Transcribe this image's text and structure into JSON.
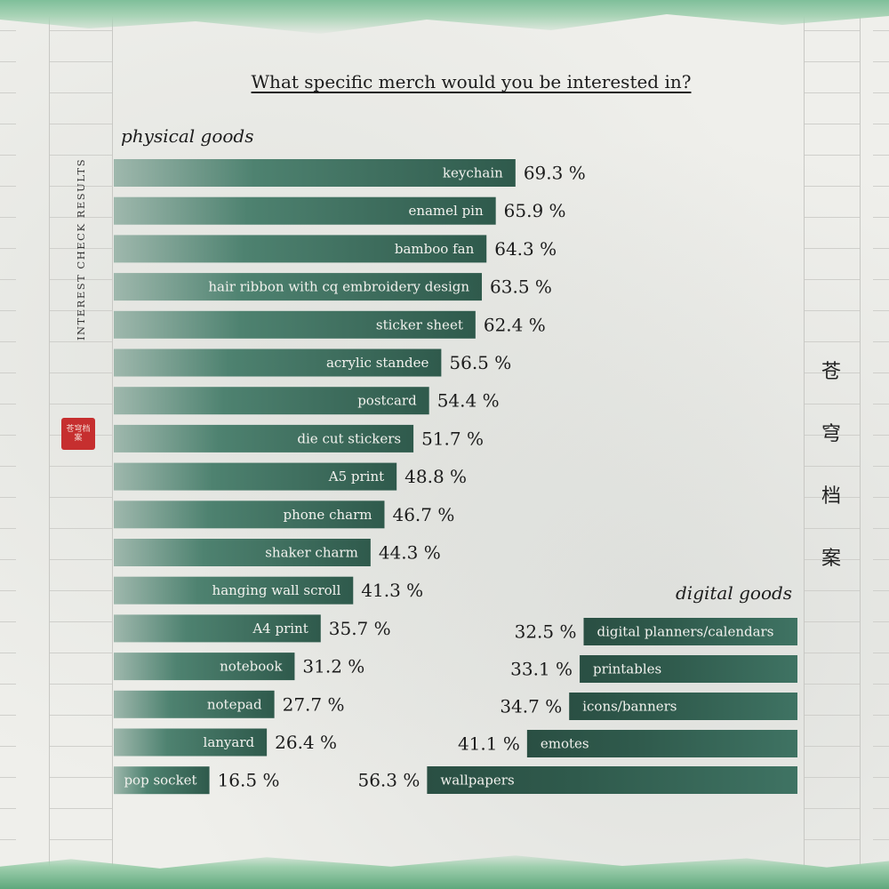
{
  "title": "What specific merch would you be interested in?",
  "side_label": "INTEREST CHECK RESULTS",
  "seal_text": "苍穹档案",
  "vertical_title": [
    "苍",
    "穹",
    "档",
    "案"
  ],
  "colors": {
    "bar_dark": "#2f5a4c",
    "bar_mid": "#4e8270",
    "bar_light": "#9fb8ad",
    "label_text": "#f2f2ee",
    "value_text": "#1c1c1c",
    "seal": "#c62f2f"
  },
  "chart_data": [
    {
      "type": "bar",
      "orientation": "horizontal",
      "group_label": "physical goods",
      "unit": "%",
      "categories": [
        "keychain",
        "enamel pin",
        "bamboo fan",
        "hair ribbon with cq embroidery design",
        "sticker sheet",
        "acrylic standee",
        "postcard",
        "die cut stickers",
        "A5 print",
        "phone charm",
        "shaker charm",
        "hanging wall scroll",
        "A4 print",
        "notebook",
        "notepad",
        "lanyard",
        "pop socket"
      ],
      "values": [
        69.3,
        65.9,
        64.3,
        63.5,
        62.4,
        56.5,
        54.4,
        51.7,
        48.8,
        46.7,
        44.3,
        41.3,
        35.7,
        31.2,
        27.7,
        26.4,
        16.5
      ],
      "value_labels": [
        "69.3 %",
        "65.9 %",
        "64.3 %",
        "63.5 %",
        "62.4 %",
        "56.5 %",
        "54.4 %",
        "51.7 %",
        "48.8 %",
        "46.7 %",
        "44.3 %",
        "41.3 %",
        "35.7 %",
        "31.2 %",
        "27.7 %",
        "26.4 %",
        "16.5 %"
      ],
      "xlim": [
        0,
        100
      ],
      "bars_start": "left",
      "labels": "inside bar, right-aligned",
      "grid": false
    },
    {
      "type": "bar",
      "orientation": "horizontal",
      "group_label": "digital goods",
      "unit": "%",
      "categories": [
        "digital planners/calendars",
        "printables",
        "icons/banners",
        "emotes",
        "wallpapers"
      ],
      "values": [
        32.5,
        33.1,
        34.7,
        41.1,
        56.3
      ],
      "value_labels": [
        "32.5 %",
        "33.1 %",
        "34.7 %",
        "41.1 %",
        "56.3 %"
      ],
      "xlim": [
        0,
        100
      ],
      "bars_start": "right",
      "labels": "inside bar, left-aligned",
      "grid": false
    }
  ]
}
